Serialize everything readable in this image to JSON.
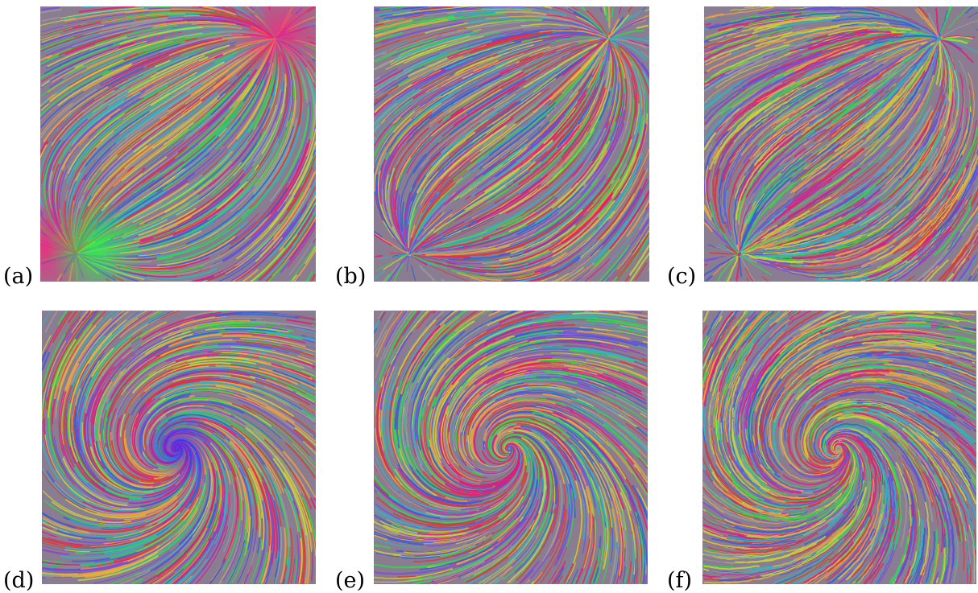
{
  "figure": {
    "panels": [
      {
        "label": "(a)",
        "field": "saddle-source-sink",
        "style": "smooth"
      },
      {
        "label": "(b)",
        "field": "saddle-source-sink",
        "style": "medium"
      },
      {
        "label": "(c)",
        "field": "saddle-source-sink",
        "style": "noisy"
      },
      {
        "label": "(d)",
        "field": "spiral-vortex",
        "style": "smooth"
      },
      {
        "label": "(e)",
        "field": "spiral-vortex",
        "style": "medium"
      },
      {
        "label": "(f)",
        "field": "spiral-vortex",
        "style": "noisy"
      }
    ],
    "colors": {
      "background": "#ffffff",
      "noise_palette": [
        "#e8177a",
        "#2fd84a",
        "#7a4dd8",
        "#f0a23c",
        "#2ab6c4",
        "#c9d43a",
        "#d83a3a",
        "#3a5ad8",
        "#9a9a9a"
      ],
      "hotspot_magenta": "#ff1f7a",
      "hotspot_green": "#20ff40",
      "hotspot_blue": "#3a20ff"
    }
  }
}
